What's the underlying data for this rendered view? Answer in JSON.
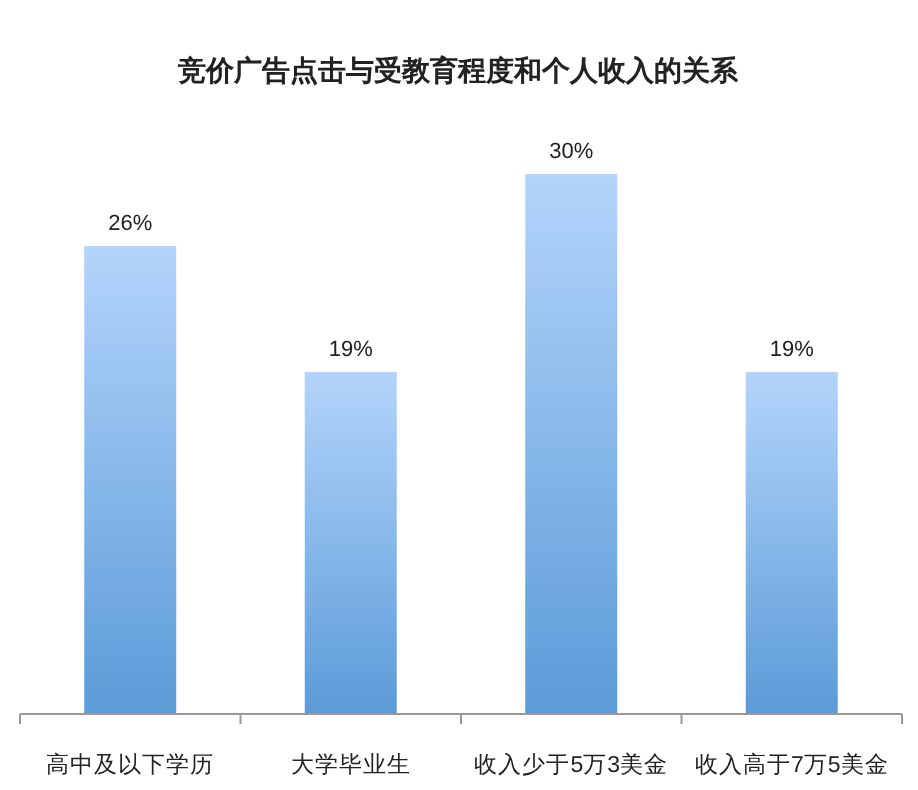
{
  "chart_data": {
    "type": "bar",
    "title": "竞价广告点击与受教育程度和个人收入的关系",
    "categories": [
      "高中及以下学历",
      "大学毕业生",
      "收入少于5万3美金",
      "收入高于7万5美金"
    ],
    "values": [
      26,
      19,
      30,
      19
    ],
    "value_labels": [
      "26%",
      "19%",
      "30%",
      "19%"
    ],
    "color": "#5b9bd8"
  }
}
